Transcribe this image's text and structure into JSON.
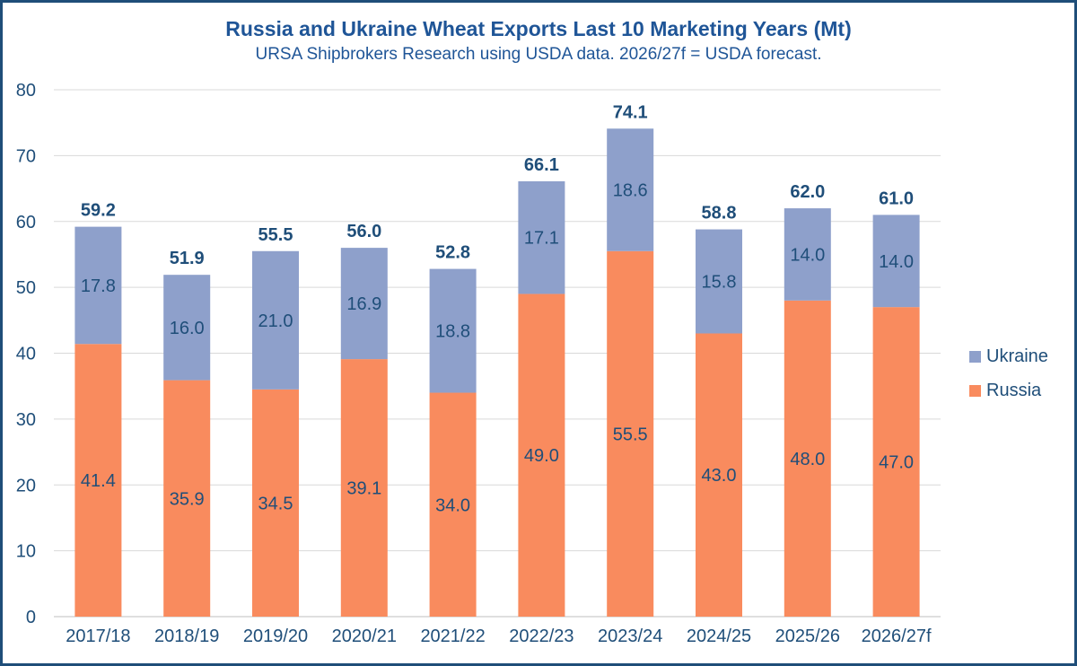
{
  "chart_data": {
    "type": "bar",
    "stacked": true,
    "title": "Russia and Ukraine Wheat Exports Last 10 Marketing Years (Mt)",
    "subtitle": "URSA Shipbrokers Research using USDA data. 2026/27f = USDA forecast.",
    "categories": [
      "2017/18",
      "2018/19",
      "2019/20",
      "2020/21",
      "2021/22",
      "2022/23",
      "2023/24",
      "2024/25",
      "2025/26",
      "2026/27f"
    ],
    "series": [
      {
        "name": "Russia",
        "color": "#f98b5e",
        "values": [
          41.4,
          35.9,
          34.5,
          39.1,
          34.0,
          49.0,
          55.5,
          43.0,
          48.0,
          47.0
        ]
      },
      {
        "name": "Ukraine",
        "color": "#8ea0cb",
        "values": [
          17.8,
          16.0,
          21.0,
          16.9,
          18.8,
          17.1,
          18.6,
          15.8,
          14.0,
          14.0
        ]
      }
    ],
    "totals": [
      59.2,
      51.9,
      55.5,
      56.0,
      52.8,
      66.1,
      74.1,
      58.8,
      62.0,
      61.0
    ],
    "ylim": [
      0,
      80
    ],
    "yticks": [
      0,
      10,
      20,
      30,
      40,
      50,
      60,
      70,
      80
    ],
    "grid": true,
    "legend": [
      {
        "label": "Ukraine",
        "color": "#8ea0cb"
      },
      {
        "label": "Russia",
        "color": "#f98b5e"
      }
    ],
    "legend_position": "right"
  }
}
